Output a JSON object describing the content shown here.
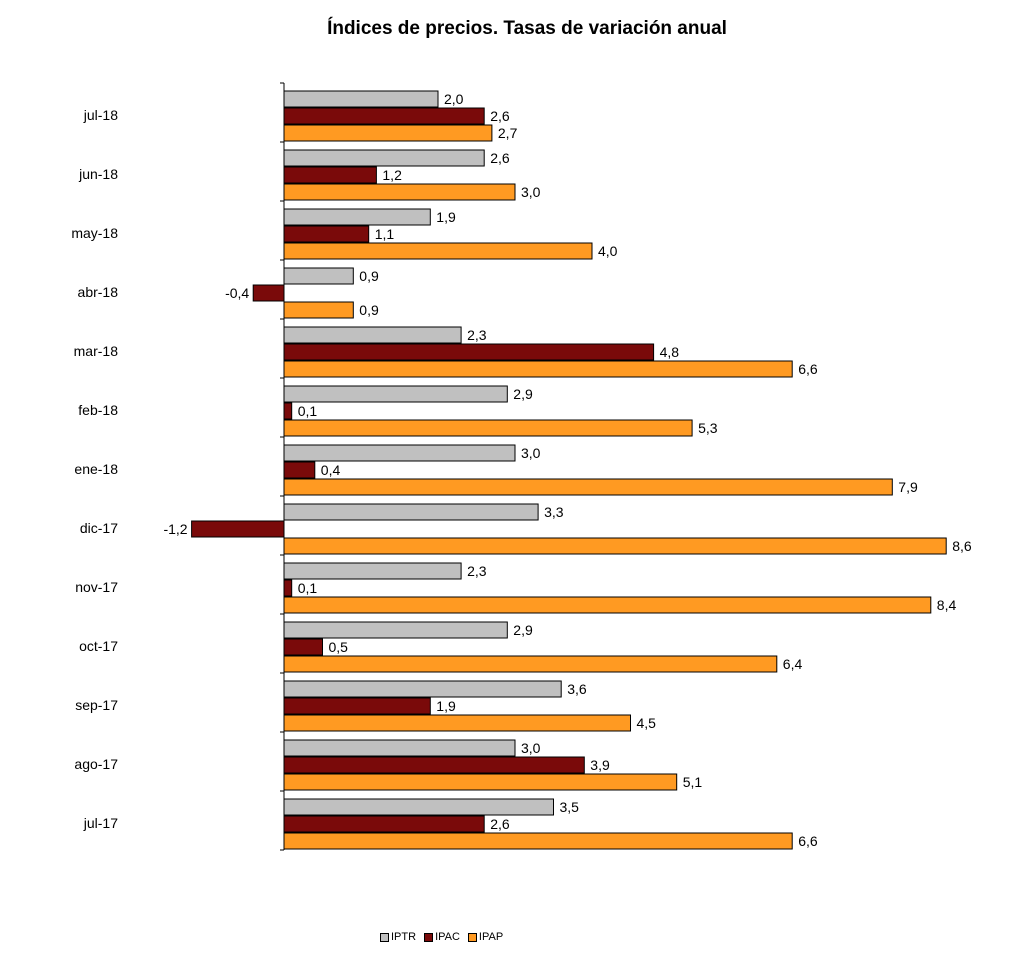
{
  "chart_data": {
    "type": "bar",
    "orientation": "horizontal",
    "title": "Índices de precios. Tasas de variación anual",
    "categories": [
      "jul-18",
      "jun-18",
      "may-18",
      "abr-18",
      "mar-18",
      "feb-18",
      "ene-18",
      "dic-17",
      "nov-17",
      "oct-17",
      "sep-17",
      "ago-17",
      "jul-17"
    ],
    "series": [
      {
        "name": "IPTR",
        "color": "#c0c0c0",
        "values": [
          2.0,
          2.6,
          1.9,
          0.9,
          2.3,
          2.9,
          3.0,
          3.3,
          2.3,
          2.9,
          3.6,
          3.0,
          3.5
        ],
        "labels": [
          "2,0",
          "2,6",
          "1,9",
          "0,9",
          "2,3",
          "2,9",
          "3,0",
          "3,3",
          "2,3",
          "2,9",
          "3,6",
          "3,0",
          "3,5"
        ]
      },
      {
        "name": "IPAC",
        "color": "#7a0a0a",
        "values": [
          2.6,
          1.2,
          1.1,
          -0.4,
          4.8,
          0.1,
          0.4,
          -1.2,
          0.1,
          0.5,
          1.9,
          3.9,
          2.6
        ],
        "labels": [
          "2,6",
          "1,2",
          "1,1",
          "-0,4",
          "4,8",
          "0,1",
          "0,4",
          "-1,2",
          "0,1",
          "0,5",
          "1,9",
          "3,9",
          "2,6"
        ]
      },
      {
        "name": "IPAP",
        "color": "#ff9a22",
        "values": [
          2.7,
          3.0,
          4.0,
          0.9,
          6.6,
          5.3,
          7.9,
          8.6,
          8.4,
          6.4,
          4.5,
          5.1,
          6.6
        ],
        "labels": [
          "2,7",
          "3,0",
          "4,0",
          "0,9",
          "6,6",
          "5,3",
          "7,9",
          "8,6",
          "8,4",
          "6,4",
          "4,5",
          "5,1",
          "6,6"
        ]
      }
    ],
    "legend_position": "bottom",
    "grid": false
  }
}
